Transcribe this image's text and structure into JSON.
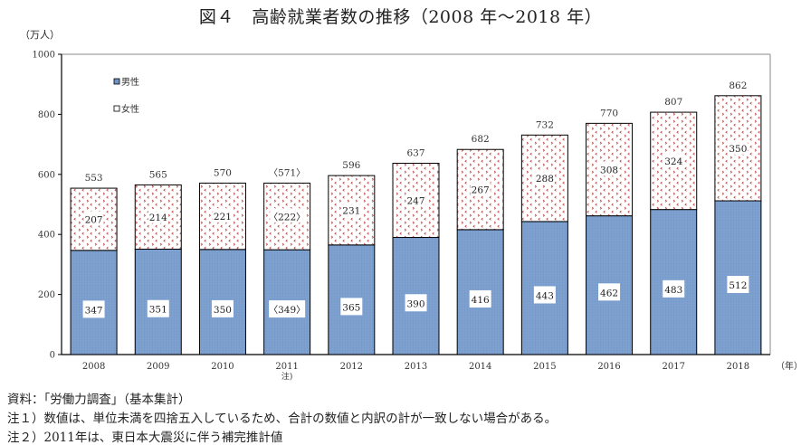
{
  "chart_data": {
    "type": "bar",
    "stacked": true,
    "title": "図４　高齢就業者数の推移（2008 年～2018 年）",
    "ylabel": "（万人）",
    "xlabel": "（年）",
    "ylim": [
      0,
      1000
    ],
    "yticks": [
      0,
      200,
      400,
      600,
      800,
      1000
    ],
    "categories": [
      "2008",
      "2009",
      "2010",
      "2011",
      "2012",
      "2013",
      "2014",
      "2015",
      "2016",
      "2017",
      "2018"
    ],
    "category_notes": [
      "",
      "",
      "",
      "注)",
      "",
      "",
      "",
      "",
      "",
      "",
      ""
    ],
    "series": [
      {
        "name": "男性",
        "color": "#7ea1d0",
        "values": [
          347,
          351,
          350,
          349,
          365,
          390,
          416,
          443,
          462,
          483,
          512
        ],
        "labels": [
          "347",
          "351",
          "350",
          "〈349〉",
          "365",
          "390",
          "416",
          "443",
          "462",
          "483",
          "512"
        ]
      },
      {
        "name": "女性",
        "color": "#c0504d",
        "pattern": "dotted-chevrons",
        "values": [
          207,
          214,
          221,
          222,
          231,
          247,
          267,
          288,
          308,
          324,
          350
        ],
        "labels": [
          "207",
          "214",
          "221",
          "〈222〉",
          "231",
          "247",
          "267",
          "288",
          "308",
          "324",
          "350"
        ]
      }
    ],
    "totals": [
      553,
      565,
      570,
      571,
      596,
      637,
      682,
      732,
      770,
      807,
      862
    ],
    "total_labels": [
      "553",
      "565",
      "570",
      "〈571〉",
      "596",
      "637",
      "682",
      "732",
      "770",
      "807",
      "862"
    ],
    "legend": {
      "placement": "top-left-inside",
      "entries": [
        "男性",
        "女性"
      ]
    },
    "grid": false
  },
  "notes": {
    "source": "資料：「労働力調査」（基本集計）",
    "note1": "注１）数値は、単位未満を四捨五入しているため、合計の数値と内訳の計が一致しない場合がある。",
    "note2": "注２）2011年は、東日本大震災に伴う補完推計値"
  }
}
